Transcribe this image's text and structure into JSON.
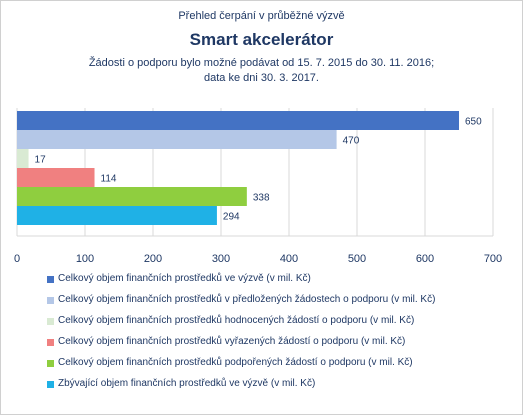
{
  "header": {
    "supertitle": "Přehled čerpání v průběžné výzvě",
    "title": "Smart akcelerátor",
    "subtitle_line1": "Žádosti o podporu bylo možné  podávat od 15. 7. 2015 do 30. 11. 2016;",
    "subtitle_line2": "data ke dni 30. 3. 2017."
  },
  "chart_data": {
    "type": "bar",
    "orientation": "horizontal",
    "title": "Smart akcelerátor",
    "xlim": [
      0,
      700
    ],
    "xticks": [
      0,
      100,
      200,
      300,
      400,
      500,
      600,
      700
    ],
    "grid": true,
    "legend_position": "bottom",
    "series": [
      {
        "name": "Celkový objem finančních prostředků ve výzvě (v mil. Kč)",
        "value": 650,
        "label": "650",
        "color": "#4472c4"
      },
      {
        "name": "Celkový objem finančních prostředků v předložených žádostech o podporu (v mil. Kč)",
        "value": 470,
        "label": "470",
        "color": "#b4c7e7"
      },
      {
        "name": "Celkový objem finančních prostředků hodnocených žádostí o podporu (v mil. Kč)",
        "value": 17,
        "label": "17",
        "color": "#d9ead3"
      },
      {
        "name": "Celkový objem finančních prostředků vyřazených žádostí o podporu (v mil. Kč)",
        "value": 114,
        "label": "114",
        "color": "#f08080"
      },
      {
        "name": "Celkový objem finančních prostředků podpořených žádostí o podporu (v mil. Kč)",
        "value": 338,
        "label": "338",
        "color": "#8fce3f"
      },
      {
        "name": "Zbývající objem finančních prostředků ve výzvě (v mil. Kč)",
        "value": 294,
        "label": "294",
        "color": "#1fb1e6"
      }
    ]
  }
}
